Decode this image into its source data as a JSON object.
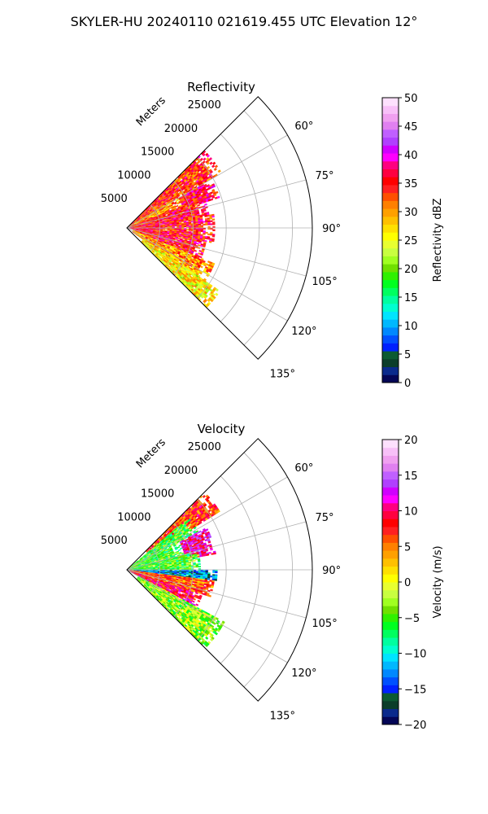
{
  "figure": {
    "suptitle": "SKYLER-HU  20240110  021619.455 UTC Elevation 12°"
  },
  "colors": {
    "background": "#ffffff",
    "grid": "#b0b0b0",
    "axis": "#000000"
  },
  "chart_data": [
    {
      "type": "heatmap",
      "projection": "polar-sector",
      "title": "Reflectivity",
      "radial_label": "Meters",
      "radial_ticks": [
        5000,
        10000,
        15000,
        20000,
        25000
      ],
      "radial_tick_labels": [
        "5000",
        "10000",
        "15000",
        "20000",
        "25000"
      ],
      "radial_range": [
        0,
        28000
      ],
      "azimuth_range_deg": [
        45,
        135
      ],
      "azimuth_ticks": [
        60,
        75,
        90,
        105,
        120,
        135
      ],
      "azimuth_tick_labels": [
        "60°",
        "75°",
        "90°",
        "105°",
        "120°",
        "135°"
      ],
      "grid": true,
      "colorbar": {
        "label": "Reflectivity dBZ",
        "range": [
          0,
          50
        ],
        "ticks": [
          0,
          5,
          10,
          15,
          20,
          25,
          30,
          35,
          40,
          45,
          50
        ],
        "tick_labels": [
          "0",
          "5",
          "10",
          "15",
          "20",
          "25",
          "30",
          "35",
          "40",
          "45",
          "50"
        ],
        "colors": [
          "#040656",
          "#0a2a8c",
          "#0b3d2a",
          "#0c5a33",
          "#0020ff",
          "#0050ff",
          "#0088ff",
          "#00b8ff",
          "#00e5ff",
          "#00ffd0",
          "#00ffa0",
          "#00ff60",
          "#00ff20",
          "#30f000",
          "#70e000",
          "#a0ff20",
          "#c8ff40",
          "#e8ff30",
          "#ffff00",
          "#ffe000",
          "#ffc000",
          "#ffa000",
          "#ff8000",
          "#ff5000",
          "#ff2020",
          "#ff0000",
          "#ff0040",
          "#ff0080",
          "#ff00ff",
          "#d000ff",
          "#b040ff",
          "#c060ff",
          "#e080f0",
          "#f0a0f0",
          "#f8c0f8",
          "#fde0fd"
        ]
      },
      "echo_regions": [
        {
          "az": [
            45,
            60
          ],
          "r": [
            0,
            16500
          ],
          "value": 34
        },
        {
          "az": [
            58,
            70
          ],
          "r": [
            500,
            9000
          ],
          "value": 30
        },
        {
          "az": [
            60,
            72
          ],
          "r": [
            9000,
            14500
          ],
          "value": 36
        },
        {
          "az": [
            68,
            82
          ],
          "r": [
            0,
            12500
          ],
          "value": 35
        },
        {
          "az": [
            80,
            100
          ],
          "r": [
            0,
            13000
          ],
          "value": 35
        },
        {
          "az": [
            100,
            112
          ],
          "r": [
            1000,
            12000
          ],
          "value": 35
        },
        {
          "az": [
            112,
            126
          ],
          "r": [
            1000,
            14000
          ],
          "value": 30
        },
        {
          "az": [
            124,
            135
          ],
          "r": [
            3000,
            17000
          ],
          "value": 26
        }
      ]
    },
    {
      "type": "heatmap",
      "projection": "polar-sector",
      "title": "Velocity",
      "radial_label": "Meters",
      "radial_ticks": [
        5000,
        10000,
        15000,
        20000,
        25000
      ],
      "radial_tick_labels": [
        "5000",
        "10000",
        "15000",
        "20000",
        "25000"
      ],
      "radial_range": [
        0,
        28000
      ],
      "azimuth_range_deg": [
        45,
        135
      ],
      "azimuth_ticks": [
        60,
        75,
        90,
        105,
        120,
        135
      ],
      "azimuth_tick_labels": [
        "60°",
        "75°",
        "90°",
        "105°",
        "120°",
        "135°"
      ],
      "grid": true,
      "colorbar": {
        "label": "Velocity (m/s)",
        "range": [
          -20,
          20
        ],
        "ticks": [
          -20,
          -15,
          -10,
          -5,
          0,
          5,
          10,
          15,
          20
        ],
        "tick_labels": [
          "−20",
          "−15",
          "−10",
          "−5",
          "0",
          "5",
          "10",
          "15",
          "20"
        ],
        "colors": [
          "#040656",
          "#0a2a8c",
          "#0b3d2a",
          "#0c5a33",
          "#0020ff",
          "#0050ff",
          "#0088ff",
          "#00b8ff",
          "#00e5ff",
          "#00ffd0",
          "#00ffa0",
          "#00ff60",
          "#00ff20",
          "#30f000",
          "#70e000",
          "#a0ff20",
          "#c8ff40",
          "#e8ff30",
          "#ffff00",
          "#ffe000",
          "#ffc000",
          "#ffa000",
          "#ff8000",
          "#ff5000",
          "#ff2020",
          "#ff0000",
          "#ff0040",
          "#ff0080",
          "#ff00ff",
          "#d000ff",
          "#b040ff",
          "#c060ff",
          "#e080f0",
          "#f0a0f0",
          "#f8c0f8",
          "#fde0fd"
        ]
      },
      "echo_regions": [
        {
          "az": [
            45,
            58
          ],
          "r": [
            4000,
            16500
          ],
          "value": 7
        },
        {
          "az": [
            50,
            62
          ],
          "r": [
            0,
            12000
          ],
          "value": -5
        },
        {
          "az": [
            62,
            75
          ],
          "r": [
            0,
            9000
          ],
          "value": -5
        },
        {
          "az": [
            62,
            80
          ],
          "r": [
            9000,
            13500
          ],
          "value": 11
        },
        {
          "az": [
            75,
            90
          ],
          "r": [
            0,
            11000
          ],
          "value": -5
        },
        {
          "az": [
            90,
            97
          ],
          "r": [
            0,
            13500
          ],
          "value": -13
        },
        {
          "az": [
            97,
            108
          ],
          "r": [
            0,
            13000
          ],
          "value": 6
        },
        {
          "az": [
            108,
            118
          ],
          "r": [
            500,
            12000
          ],
          "value": 9
        },
        {
          "az": [
            118,
            135
          ],
          "r": [
            2000,
            16500
          ],
          "value": -3
        }
      ]
    }
  ]
}
